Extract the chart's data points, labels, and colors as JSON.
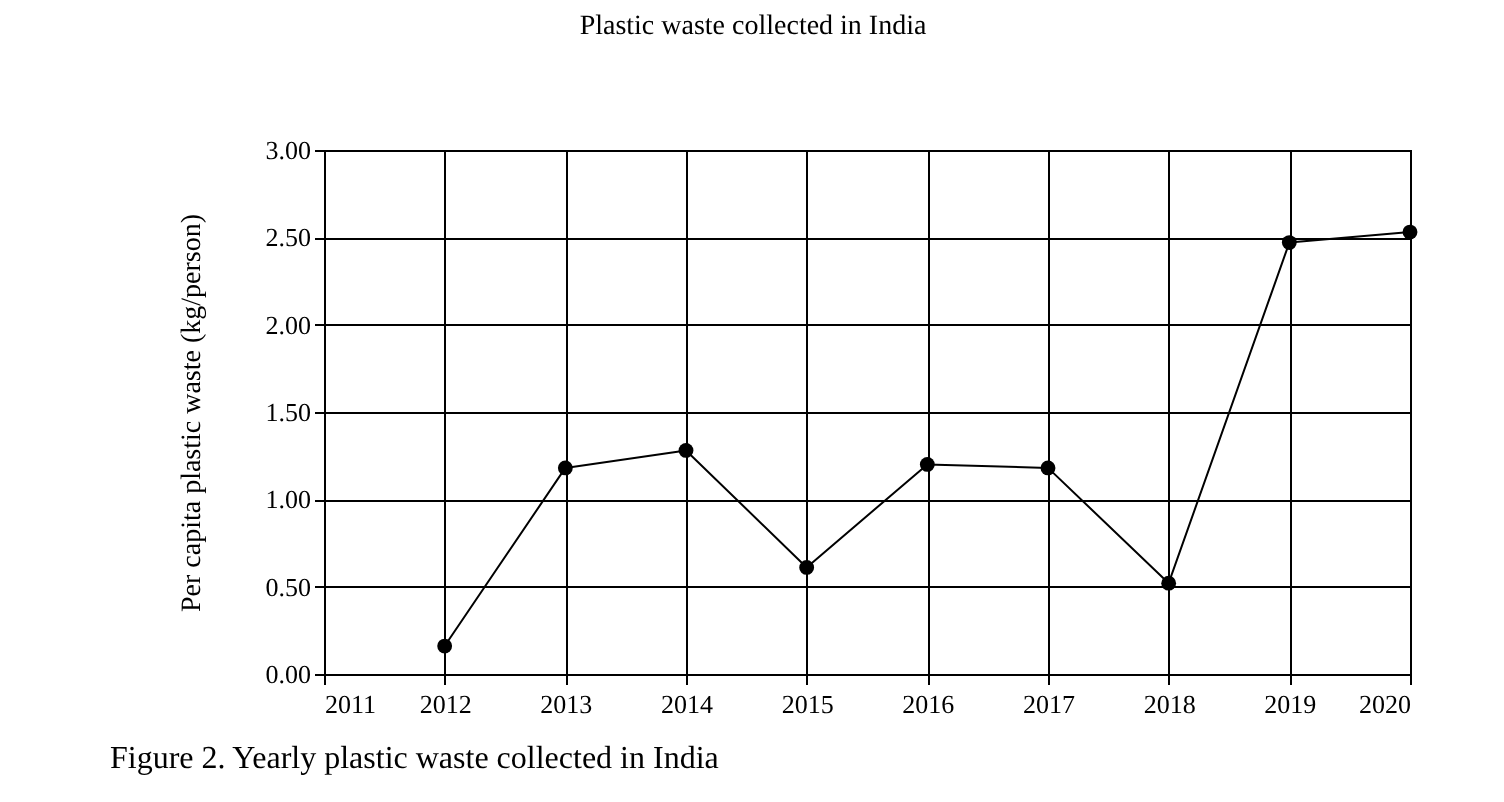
{
  "chart_data": {
    "type": "line",
    "title": "Plastic waste collected in India",
    "ylabel": "Per capita plastic waste (kg/person)",
    "annotations": [
      "Figure 2. Yearly plastic waste collected in India"
    ],
    "x": [
      2012,
      2013,
      2014,
      2015,
      2016,
      2017,
      2018,
      2019,
      2020
    ],
    "series": [
      {
        "color": "#000000",
        "values": [
          0.16,
          1.18,
          1.28,
          0.61,
          1.2,
          1.18,
          0.52,
          2.47,
          2.53
        ]
      }
    ],
    "xlim": [
      2011,
      2020
    ],
    "xticks": [
      2011,
      2012,
      2013,
      2014,
      2015,
      2016,
      2017,
      2018,
      2019,
      2020
    ],
    "ylim": [
      0,
      3
    ],
    "yticks": [
      {
        "value": 0,
        "label": "0.00"
      },
      {
        "value": 0.5,
        "label": "0.50"
      },
      {
        "value": 1,
        "label": "1.00"
      },
      {
        "value": 1.5,
        "label": "1.50"
      },
      {
        "value": 2,
        "label": "2.00"
      },
      {
        "value": 2.5,
        "label": "2.50"
      },
      {
        "value": 3,
        "label": "3.00"
      }
    ],
    "grid": true,
    "marker": "circle",
    "line_style": "solid"
  }
}
